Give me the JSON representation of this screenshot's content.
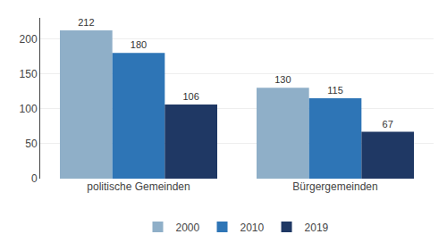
{
  "chart_data": {
    "type": "bar",
    "categories": [
      "politische Gemeinden",
      "Bürgergemeinden"
    ],
    "series": [
      {
        "name": "2000",
        "color": "#8fafc8",
        "values": [
          212,
          130
        ]
      },
      {
        "name": "2010",
        "color": "#2e75b6",
        "values": [
          180,
          115
        ]
      },
      {
        "name": "2019",
        "color": "#1f3864",
        "values": [
          106,
          67
        ]
      }
    ],
    "ylim": [
      0,
      230
    ],
    "yticks": [
      0,
      50,
      100,
      150,
      200
    ],
    "grid": true,
    "legend": "bottom",
    "data_labels": true
  }
}
